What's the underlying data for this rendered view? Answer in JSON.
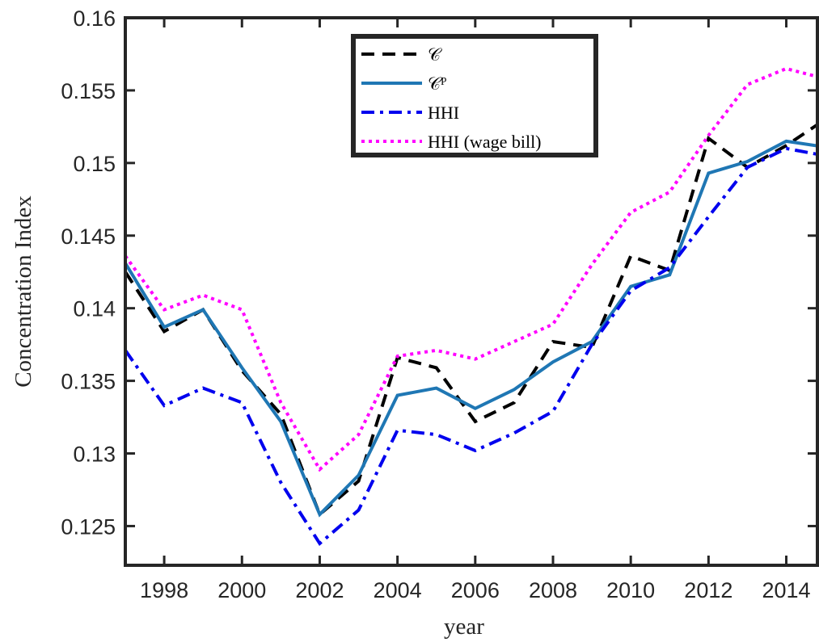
{
  "chart_data": {
    "type": "line",
    "x_label": "year",
    "y_label": "Concentration Index",
    "x": [
      1997,
      1998,
      1999,
      2000,
      2001,
      2002,
      2003,
      2004,
      2005,
      2006,
      2007,
      2008,
      2009,
      2010,
      2011,
      2012,
      2013,
      2014,
      2015
    ],
    "series": [
      {
        "name": "𝒞",
        "color": "#000000",
        "style": "dashed",
        "values": [
          0.1425,
          0.1384,
          0.1399,
          0.1357,
          0.1327,
          0.1258,
          0.1281,
          0.1366,
          0.1359,
          0.1322,
          0.1335,
          0.1377,
          0.1373,
          0.1436,
          0.1426,
          0.1517,
          0.1497,
          0.1512,
          0.153
        ]
      },
      {
        "name": "𝒞ᴾ",
        "color": "#1f77b4",
        "style": "solid",
        "values": [
          0.1431,
          0.1387,
          0.1399,
          0.1359,
          0.1322,
          0.1258,
          0.1285,
          0.134,
          0.1345,
          0.1331,
          0.1344,
          0.1363,
          0.1377,
          0.1415,
          0.1423,
          0.1493,
          0.1501,
          0.1515,
          0.1511
        ]
      },
      {
        "name": "HHI",
        "color": "#0000ee",
        "style": "dashdot",
        "values": [
          0.1371,
          0.1333,
          0.1345,
          0.1335,
          0.128,
          0.1238,
          0.1261,
          0.1316,
          0.1313,
          0.1302,
          0.1314,
          0.1329,
          0.1375,
          0.1412,
          0.1428,
          0.1463,
          0.1497,
          0.151,
          0.1505
        ]
      },
      {
        "name": "HHI (wage bill)",
        "color": "#ff00ff",
        "style": "dotted",
        "values": [
          0.1436,
          0.1399,
          0.1409,
          0.1399,
          0.1335,
          0.1289,
          0.1313,
          0.1367,
          0.1371,
          0.1365,
          0.1377,
          0.1389,
          0.143,
          0.1466,
          0.148,
          0.1519,
          0.1554,
          0.1565,
          0.1558
        ]
      }
    ],
    "xlim": [
      1997,
      2014.8
    ],
    "xticks": [
      1998,
      2000,
      2002,
      2004,
      2006,
      2008,
      2010,
      2012,
      2014
    ],
    "ylim": [
      0.1223,
      0.16
    ],
    "yticks": [
      0.125,
      0.13,
      0.135,
      0.14,
      0.145,
      0.15,
      0.155,
      0.16
    ],
    "legend": "top-center"
  }
}
